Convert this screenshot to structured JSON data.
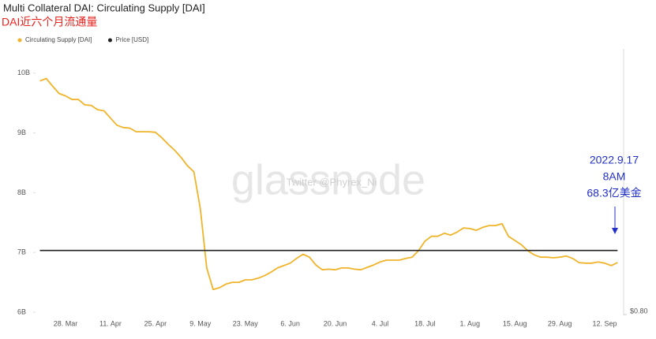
{
  "chart_data": {
    "type": "line",
    "title": "Multi Collateral DAI: Circulating Supply [DAI]",
    "subtitle": "DAI近六个月流通量",
    "annotations": [
      "2022.9.17",
      "8AM",
      "68.3亿美金"
    ],
    "watermark": "glassnode",
    "watermark_credit": "Twitter @Phyrex_Ni",
    "categories": [
      null,
      null,
      null,
      null,
      "28. Mar",
      null,
      null,
      null,
      null,
      null,
      null,
      "11. Apr",
      null,
      null,
      null,
      null,
      null,
      null,
      "25. Apr",
      null,
      null,
      null,
      null,
      null,
      null,
      "9. May",
      null,
      null,
      null,
      null,
      null,
      null,
      "23. May",
      null,
      null,
      null,
      null,
      null,
      null,
      "6. Jun",
      null,
      null,
      null,
      null,
      null,
      null,
      "20. Jun",
      null,
      null,
      null,
      null,
      null,
      null,
      "4. Jul",
      null,
      null,
      null,
      null,
      null,
      null,
      "18. Jul",
      null,
      null,
      null,
      null,
      null,
      null,
      "1. Aug",
      null,
      null,
      null,
      null,
      null,
      null,
      "15. Aug",
      null,
      null,
      null,
      null,
      null,
      null,
      "29. Aug",
      null,
      null,
      null,
      null,
      null,
      null,
      "12. Sep",
      null,
      null
    ],
    "series": [
      {
        "name": "Circulating Supply [DAI]",
        "color": "#f0b42a",
        "values": [
          9.87,
          9.91,
          9.78,
          9.66,
          9.62,
          9.56,
          9.56,
          9.47,
          9.46,
          9.39,
          9.37,
          9.25,
          9.13,
          9.09,
          9.08,
          9.02,
          9.02,
          9.02,
          9.01,
          8.92,
          8.81,
          8.71,
          8.59,
          8.45,
          8.35,
          7.73,
          6.74,
          6.38,
          6.41,
          6.47,
          6.5,
          6.5,
          6.54,
          6.54,
          6.57,
          6.61,
          6.67,
          6.74,
          6.78,
          6.82,
          6.9,
          6.97,
          6.92,
          6.79,
          6.71,
          6.72,
          6.71,
          6.74,
          6.74,
          6.72,
          6.71,
          6.75,
          6.79,
          6.84,
          6.87,
          6.87,
          6.87,
          6.9,
          6.92,
          7.03,
          7.19,
          7.27,
          7.27,
          7.32,
          7.29,
          7.34,
          7.41,
          7.4,
          7.37,
          7.42,
          7.45,
          7.45,
          7.48,
          7.27,
          7.2,
          7.13,
          7.03,
          6.96,
          6.92,
          6.92,
          6.91,
          6.92,
          6.94,
          6.9,
          6.83,
          6.82,
          6.82,
          6.84,
          6.82,
          6.78,
          6.83
        ]
      },
      {
        "name": "Price [USD]",
        "color": "#222222",
        "axis": "y2",
        "values": [
          1,
          1,
          1,
          1,
          1,
          1,
          1,
          1,
          1,
          1,
          1,
          1,
          1,
          1,
          1,
          1,
          1,
          1,
          1,
          1,
          1,
          1,
          1,
          1,
          1,
          1,
          1,
          1,
          1,
          1,
          1,
          1,
          1,
          1,
          1,
          1,
          1,
          1,
          1,
          1,
          1,
          1,
          1,
          1,
          1,
          1,
          1,
          1,
          1,
          1,
          1,
          1,
          1,
          1,
          1,
          1,
          1,
          1,
          1,
          1,
          1,
          1,
          1,
          1,
          1,
          1,
          1,
          1,
          1,
          1,
          1,
          1,
          1,
          1,
          1,
          1,
          1,
          1,
          1,
          1,
          1,
          1,
          1,
          1,
          1,
          1,
          1,
          1,
          1,
          1,
          1
        ]
      }
    ],
    "ylim": [
      5.96,
      10.09
    ],
    "yticks": [
      {
        "value": 6,
        "label": "6B"
      },
      {
        "value": 7,
        "label": "7B"
      },
      {
        "value": 8,
        "label": "8B"
      },
      {
        "value": 9,
        "label": "9B"
      },
      {
        "value": 10,
        "label": "10B"
      }
    ],
    "y2lim": [
      0.8,
      1.57
    ],
    "y2ticks": [
      {
        "value": 0.8,
        "label": "$0.80"
      }
    ],
    "grid": false,
    "legend": "top-left"
  }
}
